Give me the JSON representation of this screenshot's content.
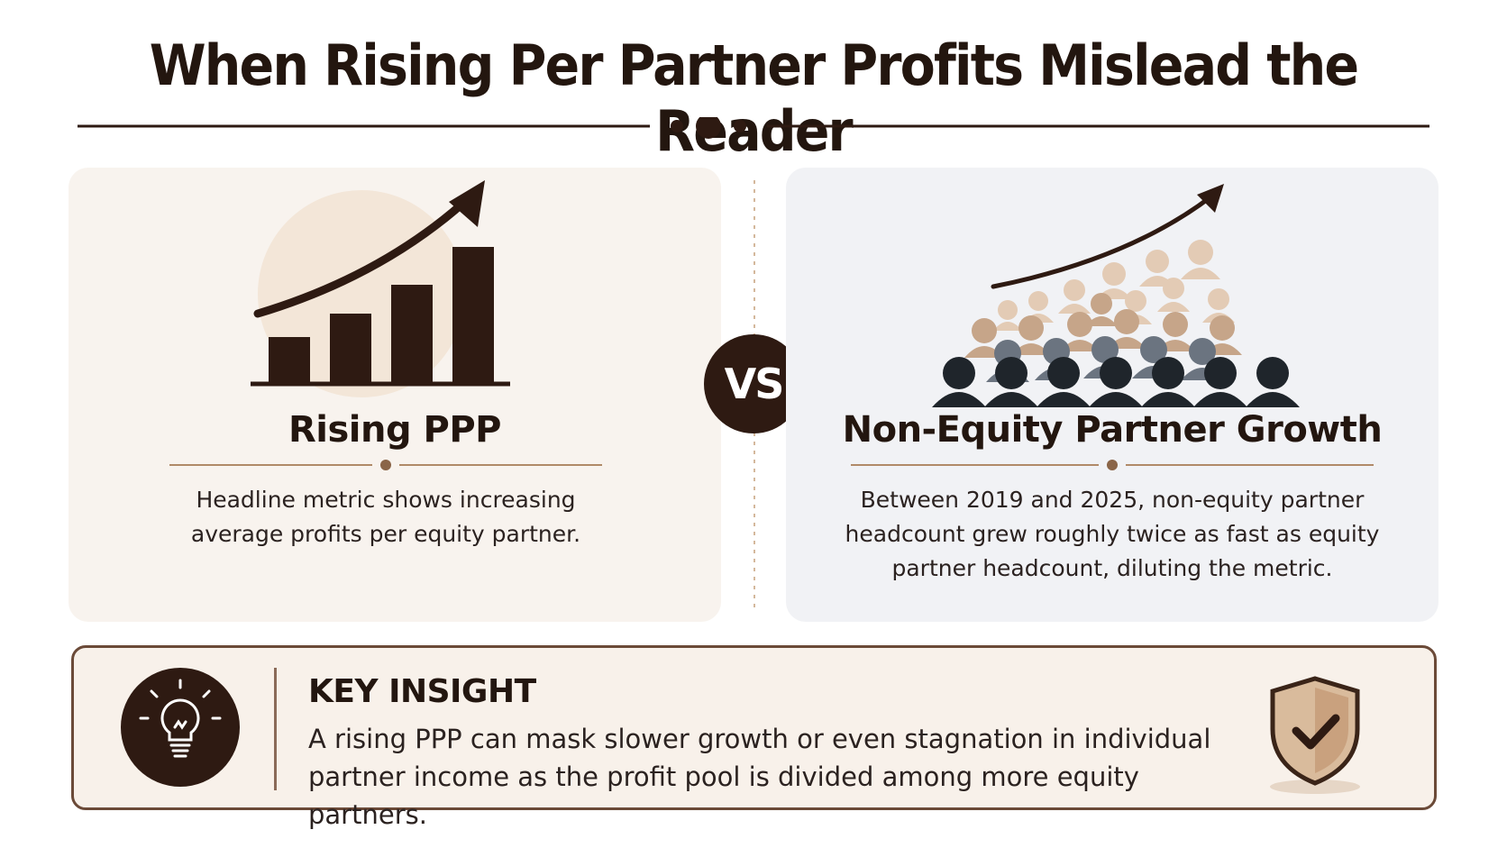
{
  "title": "When Rising Per Partner Profits Mislead the Reader",
  "left_panel": {
    "title": "Rising PPP",
    "description": "Headline metric shows increasing average profits per equity partner.",
    "illustration_icon": "rising-bar-chart-icon"
  },
  "vs_label": "VS",
  "right_panel": {
    "title": "Non-Equity Partner Growth",
    "description": "Between 2019 and 2025, non-equity partner headcount grew roughly twice as fast as equity partner headcount, diluting the metric.",
    "illustration_icon": "crowd-of-people-icon"
  },
  "insight": {
    "heading": "KEY INSIGHT",
    "text": "A rising PPP can mask slower growth or even stagnation in individual partner income as the profit pool is divided among more equity partners.",
    "icon": "lightbulb-icon",
    "badge_icon": "shield-check-icon"
  },
  "colors": {
    "dark_brown": "#2e1a12",
    "accent_tan": "#b08a68",
    "left_panel_bg": "#f8f3ee",
    "right_panel_bg": "#f1f2f5",
    "insight_bg": "#f8f1ea"
  }
}
